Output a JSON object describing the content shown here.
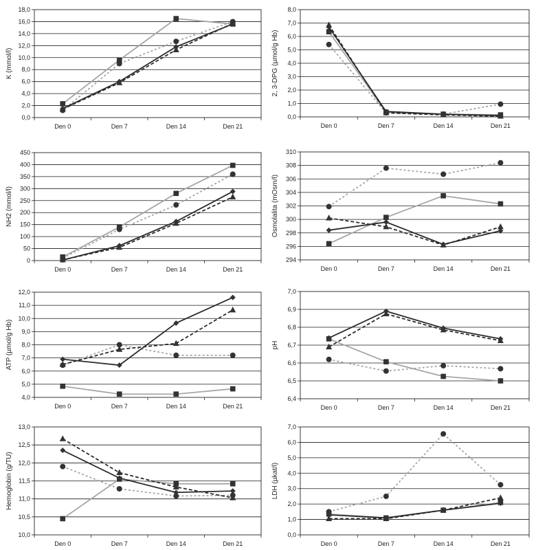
{
  "chart_data": [
    {
      "type": "line",
      "ylabel": "K (mmol/l)",
      "categories": [
        "Den 0",
        "Den 7",
        "Den 14",
        "Den 21"
      ],
      "ylim": [
        0,
        18
      ],
      "ytick_step": 2,
      "ytick_decimals": 1,
      "grid": true,
      "series": [
        {
          "marker": "square",
          "color": "#a6a6a6",
          "dash": "solid",
          "values": [
            2.3,
            9.6,
            16.5,
            15.6
          ]
        },
        {
          "marker": "circle",
          "color": "#a6a6a6",
          "dash": "dotted",
          "values": [
            1.2,
            9.0,
            12.7,
            16.0
          ]
        },
        {
          "marker": "diamond",
          "color": "#2b2b2b",
          "dash": "solid",
          "values": [
            1.5,
            6.0,
            11.8,
            15.6
          ]
        },
        {
          "marker": "triangle",
          "color": "#2b2b2b",
          "dash": "dashed",
          "values": [
            1.4,
            5.8,
            11.3,
            15.7
          ]
        }
      ]
    },
    {
      "type": "line",
      "ylabel": "2, 3-DPG (µmol/g Hb)",
      "categories": [
        "Den 0",
        "Den 7",
        "Den 14",
        "Den 21"
      ],
      "ylim": [
        0,
        8
      ],
      "ytick_step": 1,
      "ytick_decimals": 1,
      "grid": true,
      "series": [
        {
          "marker": "square",
          "color": "#a6a6a6",
          "dash": "solid",
          "values": [
            6.35,
            0.35,
            0.2,
            0.15
          ]
        },
        {
          "marker": "circle",
          "color": "#a6a6a6",
          "dash": "dotted",
          "values": [
            5.4,
            0.3,
            0.2,
            0.95
          ]
        },
        {
          "marker": "diamond",
          "color": "#2b2b2b",
          "dash": "solid",
          "values": [
            6.7,
            0.4,
            0.2,
            0.1
          ]
        },
        {
          "marker": "triangle",
          "color": "#2b2b2b",
          "dash": "dashed",
          "values": [
            6.85,
            0.3,
            0.15,
            0.05
          ]
        }
      ]
    },
    {
      "type": "line",
      "ylabel": "NH2 (mmol/l)",
      "categories": [
        "Den 0",
        "Den 7",
        "Den 14",
        "Den 21"
      ],
      "ylim": [
        0,
        450
      ],
      "ytick_step": 50,
      "ytick_decimals": 0,
      "grid": true,
      "series": [
        {
          "marker": "square",
          "color": "#a6a6a6",
          "dash": "solid",
          "values": [
            15,
            140,
            280,
            397
          ]
        },
        {
          "marker": "circle",
          "color": "#a6a6a6",
          "dash": "dotted",
          "values": [
            10,
            130,
            232,
            360
          ]
        },
        {
          "marker": "diamond",
          "color": "#2b2b2b",
          "dash": "solid",
          "values": [
            2,
            62,
            163,
            288
          ]
        },
        {
          "marker": "triangle",
          "color": "#2b2b2b",
          "dash": "dashed",
          "values": [
            3,
            55,
            155,
            265
          ]
        }
      ]
    },
    {
      "type": "line",
      "ylabel": "Osmolalita (mOsm/l)",
      "categories": [
        "Den 0",
        "Den 7",
        "Den 14",
        "Den 21"
      ],
      "ylim": [
        294,
        310
      ],
      "ytick_step": 2,
      "ytick_decimals": 0,
      "grid": true,
      "series": [
        {
          "marker": "square",
          "color": "#a6a6a6",
          "dash": "solid",
          "values": [
            296.4,
            300.3,
            303.5,
            302.3
          ]
        },
        {
          "marker": "circle",
          "color": "#a6a6a6",
          "dash": "dotted",
          "values": [
            301.9,
            307.6,
            306.7,
            308.4
          ]
        },
        {
          "marker": "diamond",
          "color": "#2b2b2b",
          "dash": "solid",
          "values": [
            298.4,
            299.6,
            296.3,
            298.3
          ]
        },
        {
          "marker": "triangle",
          "color": "#2b2b2b",
          "dash": "dashed",
          "values": [
            300.2,
            298.9,
            296.2,
            298.9
          ]
        }
      ]
    },
    {
      "type": "line",
      "ylabel": "ATP (µmol/g Hb)",
      "categories": [
        "Den 0",
        "Den 7",
        "Den 14",
        "Den 21"
      ],
      "ylim": [
        4,
        12
      ],
      "ytick_step": 1,
      "ytick_decimals": 1,
      "grid": true,
      "series": [
        {
          "marker": "square",
          "color": "#a6a6a6",
          "dash": "solid",
          "values": [
            4.85,
            4.25,
            4.25,
            4.65
          ]
        },
        {
          "marker": "circle",
          "color": "#a6a6a6",
          "dash": "dotted",
          "values": [
            6.45,
            8.0,
            7.2,
            7.2
          ]
        },
        {
          "marker": "diamond",
          "color": "#2b2b2b",
          "dash": "solid",
          "values": [
            6.9,
            6.45,
            9.65,
            11.6
          ]
        },
        {
          "marker": "triangle",
          "color": "#2b2b2b",
          "dash": "dashed",
          "values": [
            6.5,
            7.65,
            8.1,
            10.65
          ]
        }
      ]
    },
    {
      "type": "line",
      "ylabel": "pH",
      "categories": [
        "Den 0",
        "Den 7",
        "Den 14",
        "Den 21"
      ],
      "ylim": [
        6.4,
        7.0
      ],
      "ytick_step": 0.1,
      "ytick_decimals": 1,
      "grid": true,
      "series": [
        {
          "marker": "square",
          "color": "#a6a6a6",
          "dash": "solid",
          "values": [
            6.735,
            6.607,
            6.525,
            6.5
          ]
        },
        {
          "marker": "circle",
          "color": "#a6a6a6",
          "dash": "dotted",
          "values": [
            6.62,
            6.555,
            6.585,
            6.568
          ]
        },
        {
          "marker": "diamond",
          "color": "#2b2b2b",
          "dash": "solid",
          "values": [
            6.74,
            6.89,
            6.795,
            6.735
          ]
        },
        {
          "marker": "triangle",
          "color": "#2b2b2b",
          "dash": "dashed",
          "values": [
            6.69,
            6.875,
            6.785,
            6.725
          ]
        }
      ]
    },
    {
      "type": "line",
      "ylabel": "Hemoglobin (g/TU)",
      "categories": [
        "Den 0",
        "Den 7",
        "Den 14",
        "Den 21"
      ],
      "ylim": [
        10.0,
        13.0
      ],
      "ytick_step": 0.5,
      "ytick_decimals": 1,
      "grid": true,
      "series": [
        {
          "marker": "square",
          "color": "#a6a6a6",
          "dash": "solid",
          "values": [
            10.45,
            11.55,
            11.42,
            11.42
          ]
        },
        {
          "marker": "circle",
          "color": "#a6a6a6",
          "dash": "dotted",
          "values": [
            11.9,
            11.28,
            11.08,
            11.1
          ]
        },
        {
          "marker": "diamond",
          "color": "#2b2b2b",
          "dash": "solid",
          "values": [
            12.35,
            11.58,
            11.18,
            11.22
          ]
        },
        {
          "marker": "triangle",
          "color": "#2b2b2b",
          "dash": "dashed",
          "values": [
            12.67,
            11.73,
            11.33,
            11.03
          ]
        }
      ]
    },
    {
      "type": "line",
      "ylabel": "LDH (µkat/l)",
      "categories": [
        "Den 0",
        "Den 7",
        "Den 14",
        "Den 21"
      ],
      "ylim": [
        0,
        7
      ],
      "ytick_step": 1,
      "ytick_decimals": 1,
      "grid": true,
      "series": [
        {
          "marker": "square",
          "color": "#a6a6a6",
          "dash": "solid",
          "values": [
            1.35,
            1.1,
            1.6,
            2.1
          ]
        },
        {
          "marker": "circle",
          "color": "#a6a6a6",
          "dash": "dotted",
          "values": [
            1.5,
            2.5,
            6.55,
            3.25
          ]
        },
        {
          "marker": "diamond",
          "color": "#2b2b2b",
          "dash": "solid",
          "values": [
            1.3,
            1.1,
            1.6,
            2.05
          ]
        },
        {
          "marker": "triangle",
          "color": "#2b2b2b",
          "dash": "dashed",
          "values": [
            1.05,
            1.05,
            1.6,
            2.4
          ]
        }
      ]
    }
  ]
}
